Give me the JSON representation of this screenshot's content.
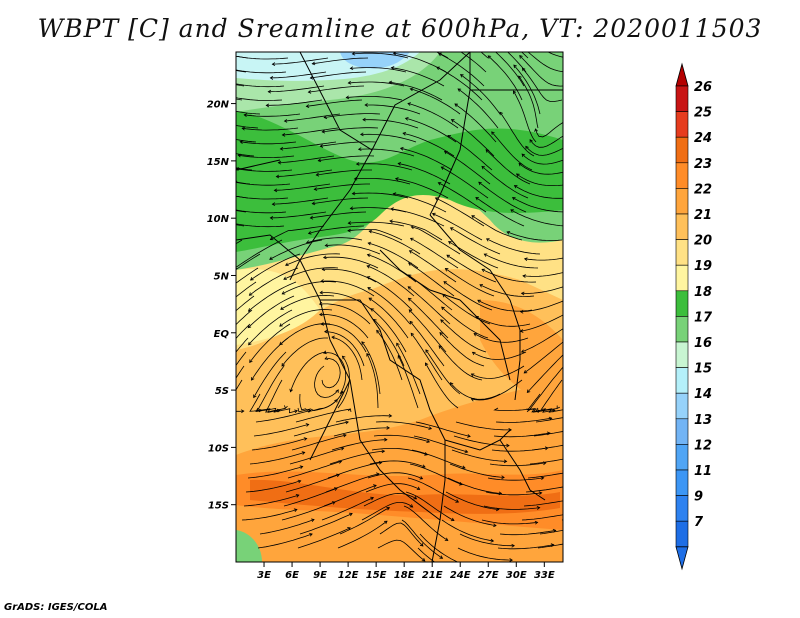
{
  "title": "WBPT [C] and Sreamline at 600hPa, VT: 2020011503",
  "credit": "GrADS: IGES/COLA",
  "map": {
    "lat_labels": [
      "20N",
      "15N",
      "10N",
      "5N",
      "EQ",
      "5S",
      "10S",
      "15S"
    ],
    "lat_values": [
      20,
      15,
      10,
      5,
      0,
      -5,
      -10,
      -15
    ],
    "lon_labels": [
      "3E",
      "6E",
      "9E",
      "12E",
      "15E",
      "18E",
      "21E",
      "24E",
      "27E",
      "30E",
      "33E"
    ],
    "lon_values": [
      3,
      6,
      9,
      12,
      15,
      18,
      21,
      24,
      27,
      30,
      33
    ],
    "lat_range": [
      -20,
      24.5
    ],
    "lon_range": [
      0,
      35
    ]
  },
  "colorbar": {
    "labels": [
      "7",
      "9",
      "11",
      "12",
      "13",
      "14",
      "15",
      "16",
      "17",
      "18",
      "19",
      "20",
      "21",
      "22",
      "23",
      "24",
      "25",
      "26"
    ],
    "colors": [
      "#1e6ee6",
      "#2e82f0",
      "#3c96f5",
      "#50a5f5",
      "#72b4f5",
      "#96d2fa",
      "#b4f0fa",
      "#c8f5d2",
      "#78d278",
      "#3cbe3c",
      "#fff5a0",
      "#ffe185",
      "#ffc05a",
      "#ffa53c",
      "#ff8c28",
      "#f06e14",
      "#e63c1e",
      "#c81414"
    ],
    "low_color": "#1e6ee6",
    "high_color": "#b40000"
  },
  "colors": {
    "green_dark": "#3cbe3c",
    "green_mid": "#78d278",
    "green_light": "#aae6aa",
    "cyan_light": "#c8f5f5",
    "blue_light": "#96d2fa",
    "yellow_light": "#fff5a0",
    "yellow": "#ffe185",
    "orange_light": "#ffc05a",
    "orange": "#ffa53c",
    "orange_dark": "#ff8c28",
    "red_orange": "#f06e14"
  }
}
